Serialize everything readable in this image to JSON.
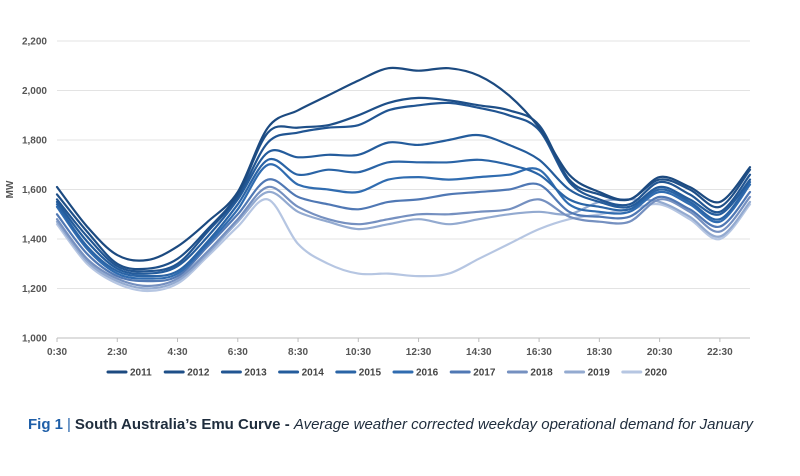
{
  "chart_data": {
    "type": "line",
    "title": "",
    "xlabel": "",
    "ylabel": "MW",
    "ylim": [
      1000,
      2200
    ],
    "yticks": [
      1000,
      1200,
      1400,
      1600,
      1800,
      2000,
      2200
    ],
    "ytick_labels": [
      "1,000",
      "1,200",
      "1,400",
      "1,600",
      "1,800",
      "2,000",
      "2,200"
    ],
    "x_categories": [
      "0:30",
      "1:30",
      "2:30",
      "3:30",
      "4:30",
      "5:30",
      "6:30",
      "7:30",
      "8:30",
      "9:30",
      "10:30",
      "11:30",
      "12:30",
      "13:30",
      "14:30",
      "15:30",
      "16:30",
      "17:30",
      "18:30",
      "19:30",
      "20:30",
      "21:30",
      "22:30",
      "23:30"
    ],
    "xtick_labels": [
      "0:30",
      "2:30",
      "4:30",
      "6:30",
      "8:30",
      "10:30",
      "12:30",
      "14:30",
      "16:30",
      "18:30",
      "20:30",
      "22:30"
    ],
    "grid": true,
    "legend_position": "bottom",
    "series": [
      {
        "name": "2011",
        "color": "#1c4a80",
        "values": [
          1610,
          1450,
          1335,
          1315,
          1370,
          1470,
          1590,
          1850,
          1920,
          1980,
          2040,
          2090,
          2080,
          2090,
          2060,
          1980,
          1850,
          1660,
          1590,
          1560,
          1650,
          1610,
          1550,
          1690
        ]
      },
      {
        "name": "2012",
        "color": "#1e4f88",
        "values": [
          1580,
          1430,
          1300,
          1280,
          1320,
          1440,
          1580,
          1830,
          1850,
          1860,
          1900,
          1950,
          1970,
          1960,
          1940,
          1920,
          1860,
          1640,
          1580,
          1560,
          1640,
          1600,
          1530,
          1680
        ]
      },
      {
        "name": "2013",
        "color": "#215592",
        "values": [
          1560,
          1410,
          1290,
          1270,
          1300,
          1430,
          1570,
          1790,
          1830,
          1850,
          1860,
          1920,
          1940,
          1950,
          1930,
          1900,
          1840,
          1630,
          1560,
          1540,
          1630,
          1580,
          1510,
          1660
        ]
      },
      {
        "name": "2014",
        "color": "#245c9c",
        "values": [
          1550,
          1390,
          1280,
          1260,
          1290,
          1410,
          1560,
          1750,
          1730,
          1740,
          1740,
          1790,
          1780,
          1800,
          1820,
          1780,
          1720,
          1600,
          1550,
          1530,
          1610,
          1560,
          1500,
          1640
        ]
      },
      {
        "name": "2015",
        "color": "#2a64a6",
        "values": [
          1540,
          1370,
          1270,
          1250,
          1270,
          1390,
          1540,
          1720,
          1660,
          1680,
          1670,
          1710,
          1710,
          1710,
          1720,
          1700,
          1660,
          1560,
          1530,
          1520,
          1600,
          1550,
          1480,
          1630
        ]
      },
      {
        "name": "2016",
        "color": "#306cb0",
        "values": [
          1530,
          1360,
          1260,
          1240,
          1260,
          1380,
          1520,
          1700,
          1620,
          1600,
          1590,
          1640,
          1650,
          1640,
          1650,
          1660,
          1680,
          1540,
          1510,
          1510,
          1590,
          1540,
          1470,
          1620
        ]
      },
      {
        "name": "2017",
        "color": "#5078b4",
        "values": [
          1500,
          1340,
          1250,
          1230,
          1250,
          1370,
          1500,
          1640,
          1570,
          1540,
          1520,
          1550,
          1560,
          1580,
          1590,
          1600,
          1620,
          1510,
          1490,
          1490,
          1570,
          1520,
          1450,
          1590
        ]
      },
      {
        "name": "2018",
        "color": "#7590c0",
        "values": [
          1480,
          1320,
          1240,
          1210,
          1240,
          1350,
          1480,
          1610,
          1530,
          1480,
          1460,
          1480,
          1500,
          1500,
          1510,
          1520,
          1560,
          1490,
          1470,
          1470,
          1560,
          1510,
          1430,
          1570
        ]
      },
      {
        "name": "2019",
        "color": "#93aad0",
        "values": [
          1470,
          1310,
          1230,
          1200,
          1230,
          1340,
          1470,
          1590,
          1510,
          1470,
          1440,
          1460,
          1480,
          1460,
          1480,
          1500,
          1510,
          1500,
          1550,
          1560,
          1550,
          1490,
          1410,
          1550
        ]
      },
      {
        "name": "2020",
        "color": "#b6c6e2",
        "values": [
          1460,
          1300,
          1220,
          1190,
          1220,
          1330,
          1450,
          1560,
          1380,
          1300,
          1260,
          1260,
          1250,
          1260,
          1320,
          1380,
          1440,
          1480,
          1500,
          1520,
          1540,
          1480,
          1400,
          1540
        ]
      }
    ]
  },
  "caption": {
    "fig_label": "Fig 1",
    "separator": "|",
    "title": "South Australia’s Emu Curve -",
    "subtitle": "Average weather corrected weekday operational demand for January"
  }
}
